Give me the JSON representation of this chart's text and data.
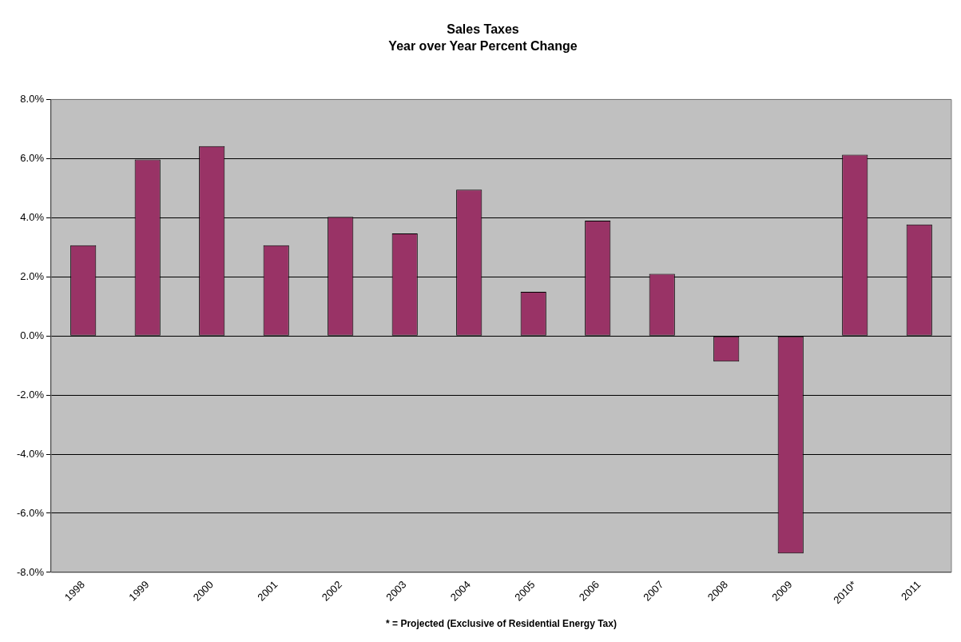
{
  "chart_data": {
    "type": "bar",
    "title": "Sales Taxes",
    "subtitle": "Year over Year Percent Change",
    "categories": [
      "1998",
      "1999",
      "2000",
      "2001",
      "2002",
      "2003",
      "2004",
      "2005",
      "2006",
      "2007",
      "2008",
      "2009",
      "2010*",
      "2011"
    ],
    "values": [
      3.07,
      5.97,
      6.42,
      3.07,
      4.03,
      3.47,
      4.95,
      1.49,
      3.9,
      2.1,
      -0.87,
      -7.36,
      6.13,
      3.77
    ],
    "color": "#993366",
    "ylim": [
      -8,
      8
    ],
    "yticks": [
      {
        "value": -8,
        "label": "-8.0%"
      },
      {
        "value": -6,
        "label": "-6.0%"
      },
      {
        "value": -4,
        "label": "-4.0%"
      },
      {
        "value": -2,
        "label": "-2.0%"
      },
      {
        "value": 0,
        "label": "0.0%"
      },
      {
        "value": 2,
        "label": "2.0%"
      },
      {
        "value": 4,
        "label": "4.0%"
      },
      {
        "value": 6,
        "label": "6.0%"
      },
      {
        "value": 8,
        "label": "8.0%"
      }
    ],
    "grid": "y",
    "legend": false,
    "annotations": [
      "* = Projected (Exclusive of Residential Energy Tax)"
    ]
  }
}
